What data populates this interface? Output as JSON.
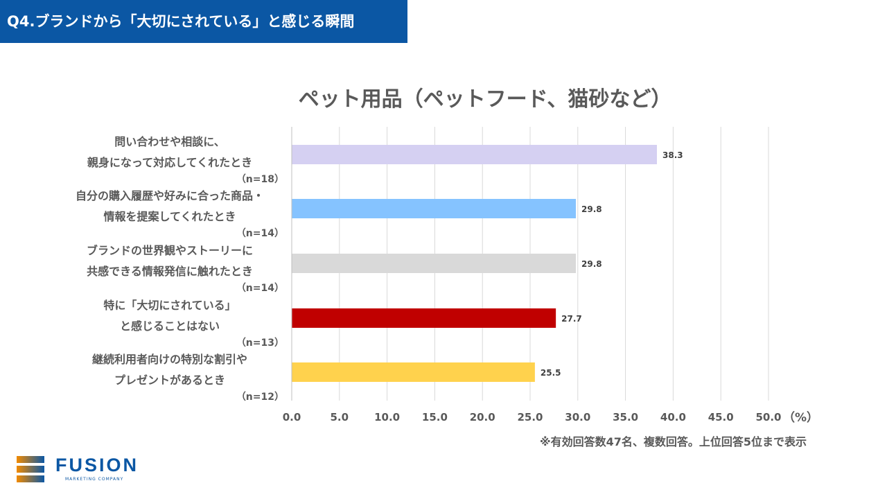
{
  "header": {
    "title": "Q4.ブランドから「大切にされている」と感じる瞬間"
  },
  "chart_data": {
    "type": "bar",
    "orientation": "horizontal",
    "title": "ペット用品（ペットフード、猫砂など）",
    "categories": [
      {
        "lines": [
          "問い合わせや相談に、",
          "親身になって対応してくれたとき"
        ],
        "n": "（n=18）"
      },
      {
        "lines": [
          "自分の購入履歴や好みに合った商品・",
          "情報を提案してくれたとき"
        ],
        "n": "（n=14）"
      },
      {
        "lines": [
          "ブランドの世界観やストーリーに",
          "共感できる情報発信に触れたとき"
        ],
        "n": "（n=14）"
      },
      {
        "lines": [
          "特に「大切にされている」",
          "と感じることはない"
        ],
        "n": "（n=13）"
      },
      {
        "lines": [
          "継続利用者向けの特別な割引や",
          "プレゼントがあるとき"
        ],
        "n": "（n=12）"
      }
    ],
    "values": [
      38.3,
      29.8,
      29.8,
      27.7,
      25.5
    ],
    "data_labels": [
      "38.3",
      "29.8",
      "29.8",
      "27.7",
      "25.5"
    ],
    "colors": [
      "#d5d0f2",
      "#85c3ff",
      "#d9d9d9",
      "#c00000",
      "#ffd24d"
    ],
    "xlim": [
      0,
      50
    ],
    "xticks": [
      "0.0",
      "5.0",
      "10.0",
      "15.0",
      "20.0",
      "25.0",
      "30.0",
      "35.0",
      "40.0",
      "45.0",
      "50.0"
    ],
    "xunit": "（%）",
    "grid": true
  },
  "note": "※有効回答数47名、複数回答。上位回答5位まで表示",
  "logo": {
    "name": "FUSION",
    "sub": "MARKETING COMPANY"
  }
}
